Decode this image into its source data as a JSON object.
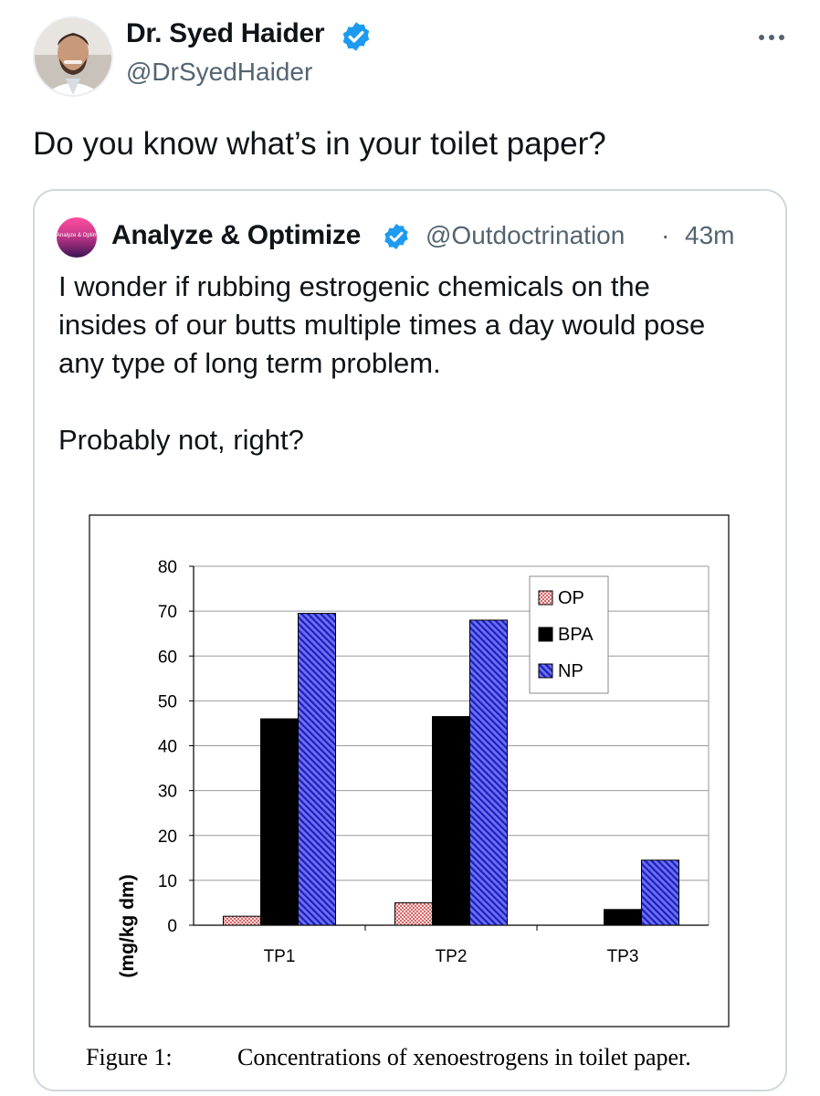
{
  "tweet": {
    "author_name": "Dr. Syed Haider",
    "author_handle": "@DrSyedHaider",
    "more_icon": "more-horizontal-icon",
    "text": "Do you know what’s in your toilet paper?"
  },
  "quote": {
    "avatar_text": "Analyze & Optimize",
    "author_name": "Analyze & Optimize",
    "author_handle": "@Outdoctrination",
    "separator": "·",
    "time": "43m",
    "text_lines": [
      "I wonder if rubbing estrogenic chemicals on the",
      "insides of our butts multiple times a day would pose",
      "any type of long term problem."
    ],
    "text_line2": "Probably not, right?"
  },
  "colors": {
    "verified": "#1d9bf0",
    "op_fill": "#f2b4b4",
    "bpa_fill": "#000000",
    "np_fill": "#3b3fe0"
  },
  "figure": {
    "caption_label": "Figure 1:",
    "caption_text": "Concentrations of xenoestrogens in toilet paper."
  },
  "chart_data": {
    "type": "bar",
    "categories": [
      "TP1",
      "TP2",
      "TP3"
    ],
    "series": [
      {
        "name": "OP",
        "values": [
          2,
          5,
          0
        ]
      },
      {
        "name": "BPA",
        "values": [
          46,
          46.5,
          3.5
        ]
      },
      {
        "name": "NP",
        "values": [
          69.5,
          68,
          14.5
        ]
      }
    ],
    "ylabel": "(mg/kg dm)",
    "ylim": [
      0,
      80
    ],
    "yticks": [
      0,
      10,
      20,
      30,
      40,
      50,
      60,
      70,
      80
    ],
    "grid": true,
    "legend": "top-right"
  }
}
